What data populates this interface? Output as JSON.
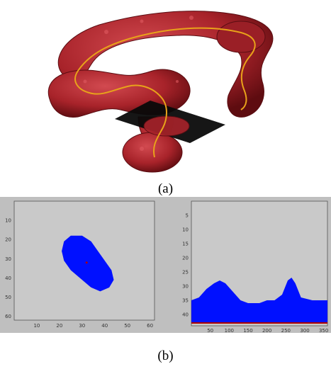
{
  "captions": {
    "a": "(a)",
    "b": "(b)"
  },
  "colors": {
    "colon": "#a8232a",
    "colon_dark": "#6a0f14",
    "centerline": "#e8a21a",
    "plane": "#0a0a0a",
    "plot_bg": "#c9c9c9",
    "panel_bg": "#bfbfbf",
    "segment": "#0010ff",
    "marker": "#b00000"
  },
  "cross_section": {
    "x_ticks": [
      "10",
      "20",
      "30",
      "40",
      "50",
      "60"
    ],
    "y_ticks": [
      "10",
      "20",
      "30",
      "40",
      "50",
      "60"
    ],
    "x_range": [
      0,
      62
    ],
    "y_range": [
      0,
      62
    ],
    "blob_outline": [
      [
        25,
        18
      ],
      [
        30,
        18
      ],
      [
        34,
        21
      ],
      [
        37,
        26
      ],
      [
        40,
        31
      ],
      [
        43,
        36
      ],
      [
        44,
        41
      ],
      [
        42,
        45
      ],
      [
        38,
        47
      ],
      [
        34,
        45
      ],
      [
        30,
        41
      ],
      [
        25,
        36
      ],
      [
        22,
        31
      ],
      [
        21,
        26
      ],
      [
        22,
        21
      ]
    ],
    "center_marker": [
      32,
      32
    ]
  },
  "profile": {
    "x_ticks": [
      "50",
      "100",
      "150",
      "200",
      "250",
      "300",
      "350"
    ],
    "y_ticks": [
      "5",
      "10",
      "15",
      "20",
      "25",
      "30",
      "35",
      "40"
    ],
    "x_range": [
      0,
      360
    ],
    "y_range": [
      0,
      44
    ],
    "top_boundary": [
      [
        0,
        35
      ],
      [
        20,
        34
      ],
      [
        40,
        31
      ],
      [
        60,
        29
      ],
      [
        75,
        28
      ],
      [
        90,
        29
      ],
      [
        110,
        32
      ],
      [
        130,
        35
      ],
      [
        150,
        36
      ],
      [
        180,
        36
      ],
      [
        200,
        35
      ],
      [
        220,
        35
      ],
      [
        240,
        33
      ],
      [
        255,
        28
      ],
      [
        265,
        27
      ],
      [
        275,
        29
      ],
      [
        290,
        34
      ],
      [
        320,
        35
      ],
      [
        360,
        35
      ]
    ],
    "baseline": 43
  }
}
